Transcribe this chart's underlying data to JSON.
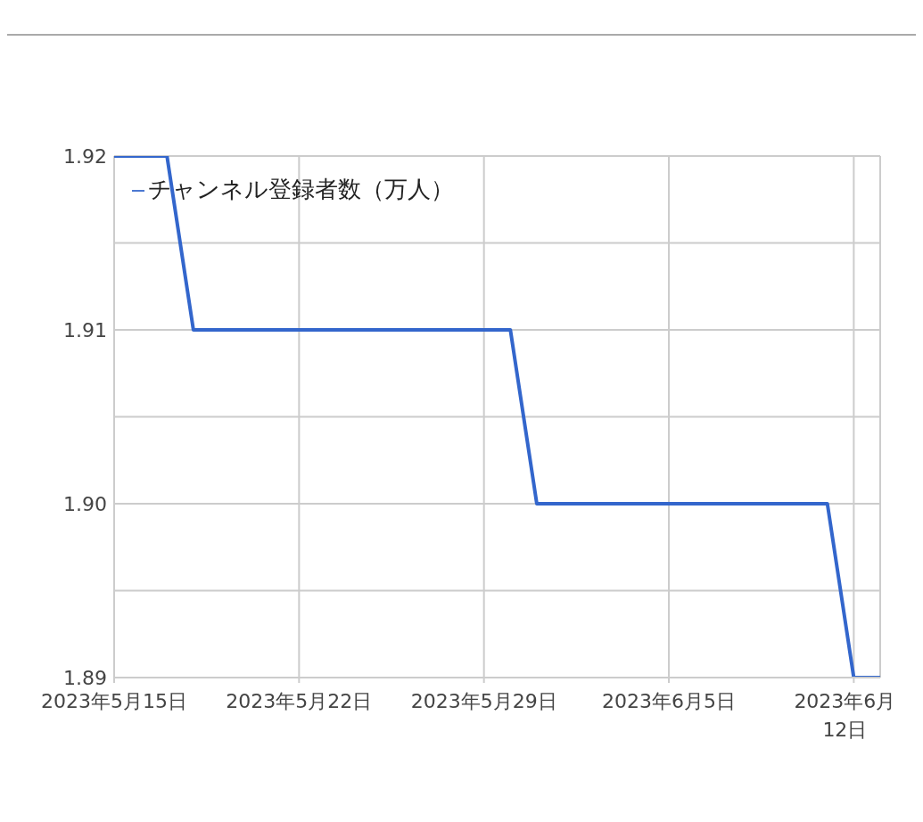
{
  "chart_data": {
    "type": "line",
    "x": [
      "2023-05-15",
      "2023-05-17",
      "2023-05-18",
      "2023-05-30",
      "2023-05-31",
      "2023-06-11",
      "2023-06-12",
      "2023-06-13"
    ],
    "series": [
      {
        "name": "チャンネル登録者数（万人）",
        "color": "#3366cc",
        "values": [
          1.92,
          1.92,
          1.91,
          1.91,
          1.9,
          1.9,
          1.89,
          1.89
        ]
      }
    ],
    "xlim": [
      "2023-05-15",
      "2023-06-13"
    ],
    "xticks": [
      {
        "value": "2023-05-15",
        "label": "2023年5月15日"
      },
      {
        "value": "2023-05-22",
        "label": "2023年5月22日"
      },
      {
        "value": "2023-05-29",
        "label": "2023年5月29日"
      },
      {
        "value": "2023-06-05",
        "label": "2023年6月5日"
      },
      {
        "value": "2023-06-12",
        "label": "2023年6月12日"
      }
    ],
    "ylim": [
      1.89,
      1.92
    ],
    "yticks": [
      {
        "value": 1.89,
        "label": "1.89"
      },
      {
        "value": 1.895,
        "label": null
      },
      {
        "value": 1.9,
        "label": "1.90"
      },
      {
        "value": 1.905,
        "label": null
      },
      {
        "value": 1.91,
        "label": "1.91"
      },
      {
        "value": 1.915,
        "label": null
      },
      {
        "value": 1.92,
        "label": "1.92"
      }
    ],
    "grid": true,
    "legend": "top left",
    "marker": "none",
    "line_style": "solid"
  }
}
